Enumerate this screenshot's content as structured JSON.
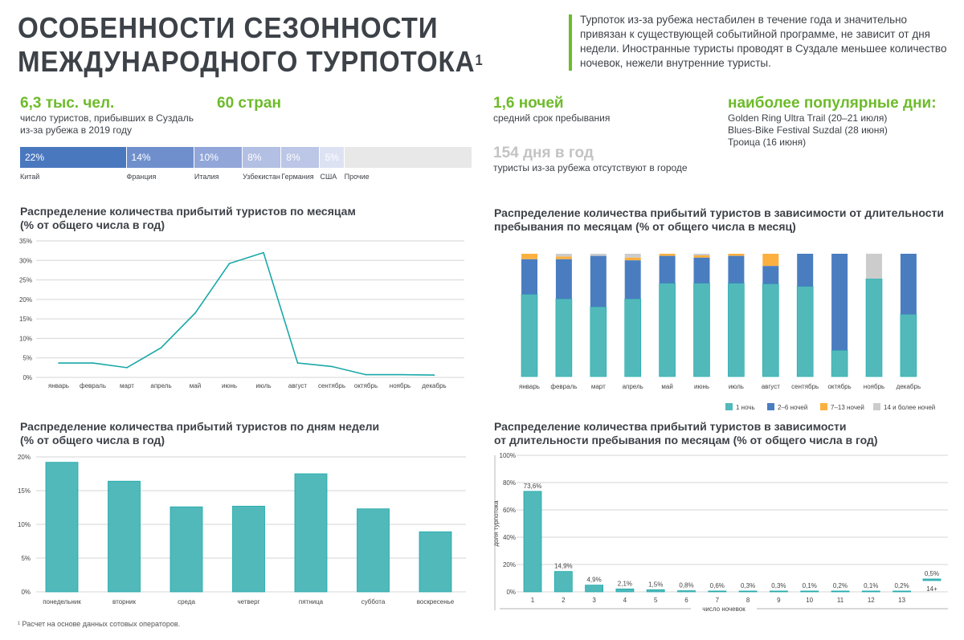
{
  "header": {
    "title_line1": "ОСОБЕННОСТИ СЕЗОННОСТИ",
    "title_line2": "МЕЖДУНАРОДНОГО ТУРПОТОКА",
    "title_footnote_mark": "1",
    "lead_text": "Турпоток из-за рубежа нестабилен в течение года и значительно привязан к существующей событийной программе, не зависит от дня недели. Иностранные туристы проводят в Суздале меньшее количество ночевок, нежели внутренние туристы."
  },
  "stats": {
    "tourists": {
      "value": "6,3 тыс. чел.",
      "caption1": "число туристов, прибывших в Суздаль",
      "caption2": "из-за рубежа в 2019 году"
    },
    "countries": {
      "value": "60 стран"
    },
    "nights": {
      "value": "1,6 ночей",
      "caption": "средний срок пребывания"
    },
    "absent": {
      "value": "154 дня в год",
      "caption": "туристы из-за рубежа отсутствуют в городе"
    },
    "popular": {
      "title": "наиболее популярные дни:",
      "items": [
        "Golden Ring Ultra Trail (20–21 июля)",
        "Blues-Bike Festival Suzdal (28 июня)",
        "Троица (16 июня)"
      ]
    }
  },
  "colors": {
    "accent_green": "#6dbb2a",
    "teal": "#52b9bb",
    "blue": "#4a7dc0",
    "orange": "#fbb040",
    "gray": "#cccccc"
  },
  "footnote": "¹ Расчет на основе данных сотовых операторов.",
  "chart_data": [
    {
      "type": "bar",
      "orientation": "stacked-horizontal",
      "categories": [
        "Китай",
        "Франция",
        "Италия",
        "Узбекистан",
        "Германия",
        "США",
        "Прочие"
      ],
      "values": [
        22,
        14,
        10,
        8,
        8,
        5,
        null
      ],
      "value_labels": [
        "22%",
        "14%",
        "10%",
        "8%",
        "8%",
        "5%",
        ""
      ],
      "colors": [
        "#4a78bf",
        "#6f8fcc",
        "#92a6d9",
        "#b3bfe3",
        "#bcc6e6",
        "#dde2f3",
        "#e8e8e8"
      ]
    },
    {
      "type": "line",
      "title": "Распределение количества прибытий туристов по месяцам",
      "subtitle": "(% от общего числа в год)",
      "categories": [
        "январь",
        "февраль",
        "март",
        "апрель",
        "май",
        "июнь",
        "июль",
        "август",
        "сентябрь",
        "октябрь",
        "ноябрь",
        "декабрь"
      ],
      "values": [
        3.7,
        3.7,
        2.5,
        7.6,
        16.5,
        29.2,
        32.0,
        3.7,
        2.8,
        0.7,
        0.7,
        0.6
      ],
      "ylim": [
        0,
        35
      ],
      "yticks": [
        "0%",
        "5%",
        "10%",
        "15%",
        "20%",
        "25%",
        "30%",
        "35%"
      ],
      "grid": true,
      "color": "#19a8a8"
    },
    {
      "type": "bar",
      "stacked": true,
      "title": "Распределение количества прибытий туристов в зависимости от длительности",
      "subtitle": "пребывания по месяцам (% от общего числа в месяц)",
      "categories": [
        "январь",
        "февраль",
        "март",
        "апрель",
        "май",
        "июнь",
        "июль",
        "август",
        "сентябрь",
        "октябрь",
        "ноябрь",
        "декабрь"
      ],
      "series": [
        {
          "name": "1 ночь",
          "color": "#52b9bb",
          "values": [
            67,
            63.3,
            56.8,
            63.3,
            76,
            76,
            76,
            75.5,
            73.4,
            21.4,
            79.7,
            50.7
          ]
        },
        {
          "name": "2–6 ночей",
          "color": "#4a7dc0",
          "values": [
            28.6,
            32.3,
            41.5,
            31.4,
            22.3,
            20.9,
            22.3,
            14.6,
            26.6,
            78.6,
            0,
            49.3
          ]
        },
        {
          "name": "7–13 ночей",
          "color": "#fbb040",
          "values": [
            4.4,
            2.2,
            0,
            2.2,
            1.7,
            1.8,
            1.7,
            9.9,
            0,
            0,
            0,
            0
          ]
        },
        {
          "name": "14 и более ночей",
          "color": "#cccccc",
          "values": [
            0,
            2.2,
            1.7,
            3.1,
            0,
            1.3,
            0,
            0,
            0,
            0,
            20.3,
            0
          ]
        }
      ],
      "ylim": [
        0,
        100
      ],
      "legend": "bottom-right"
    },
    {
      "type": "bar",
      "title": "Распределение количества прибытий туристов по дням недели",
      "subtitle": "(% от общего числа в год)",
      "categories": [
        "понедельник",
        "вторник",
        "среда",
        "четверг",
        "пятница",
        "суббота",
        "воскресенье"
      ],
      "values": [
        19.2,
        16.4,
        12.6,
        12.7,
        17.5,
        12.3,
        8.9
      ],
      "ylim": [
        0,
        20
      ],
      "yticks": [
        "0%",
        "5%",
        "10%",
        "15%",
        "20%"
      ],
      "grid": true
    },
    {
      "type": "bar",
      "title": "Распределение количества прибытий туристов в зависимости",
      "subtitle": "от длительности пребывания по месяцам (% от общего числа в год)",
      "categories": [
        "1",
        "2",
        "3",
        "4",
        "5",
        "6",
        "7",
        "8",
        "9",
        "10",
        "11",
        "12",
        "13",
        "14+"
      ],
      "values": [
        73.6,
        14.9,
        4.9,
        2.1,
        1.5,
        0.8,
        0.6,
        0.3,
        0.3,
        0.1,
        0.2,
        0.1,
        0.2,
        0.5
      ],
      "value_labels": [
        "73,6%",
        "14,9%",
        "4,9%",
        "2,1%",
        "1,5%",
        "0,8%",
        "0,6%",
        "0,3%",
        "0,3%",
        "0,1%",
        "0,2%",
        "0,1%",
        "0,2%",
        "0,5%"
      ],
      "ylim": [
        0,
        100
      ],
      "yticks": [
        "0%",
        "20%",
        "40%",
        "60%",
        "80%",
        "100%"
      ],
      "xlabel": "число ночевок",
      "ylabel": "доля турпотока",
      "grid": true
    }
  ]
}
